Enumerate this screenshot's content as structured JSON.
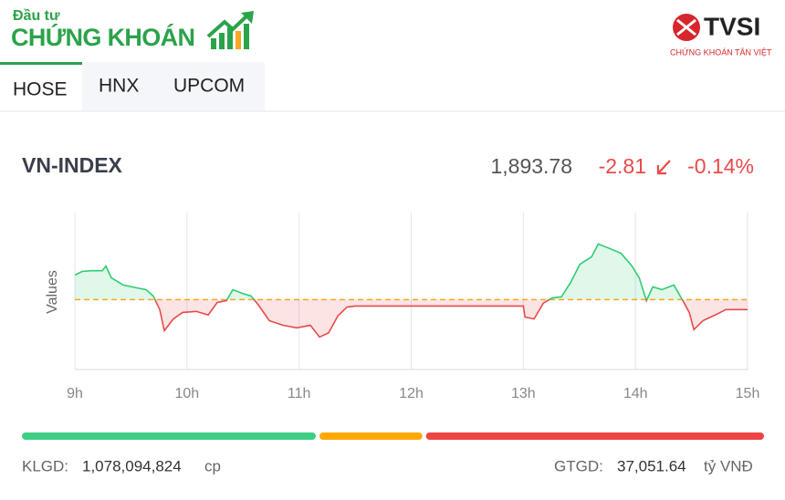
{
  "header": {
    "logo_small": "Đầu tư",
    "logo_big": "CHỨNG KHOÁN",
    "brand": "TVSI",
    "brand_sub": "CHỨNG KHOÁN TÂN VIỆT"
  },
  "tabs": [
    "HOSE",
    "HNX",
    "UPCOM"
  ],
  "index": {
    "name": "VN-INDEX",
    "value": "1,893.78",
    "change": "-2.81",
    "change_pct": "-0.14%"
  },
  "chart_data": {
    "type": "line",
    "ylabel": "Values",
    "x": [
      9.0,
      9.065,
      9.147,
      9.244,
      9.277,
      9.326,
      9.432,
      9.554,
      9.635,
      9.7,
      9.757,
      9.798,
      9.879,
      9.961,
      10.083,
      10.189,
      10.27,
      10.352,
      10.409,
      10.49,
      10.572,
      10.637,
      10.735,
      10.857,
      10.979,
      11.101,
      11.182,
      11.264,
      11.345,
      11.427,
      11.5,
      13.0,
      13.015,
      13.096,
      13.178,
      13.259,
      13.34,
      13.422,
      13.504,
      13.609,
      13.668,
      13.749,
      13.871,
      13.969,
      14.034,
      14.098,
      14.155,
      14.236,
      14.342,
      14.423,
      14.48,
      14.521,
      14.603,
      14.725,
      14.806,
      15.0
    ],
    "values": [
      1903.5,
      1904.5,
      1904.7,
      1904.7,
      1906.0,
      1902.7,
      1900.7,
      1899.9,
      1899.4,
      1897.6,
      1893.8,
      1887.9,
      1891.2,
      1893.0,
      1893.3,
      1892.3,
      1895.8,
      1896.3,
      1899.4,
      1898.4,
      1897.6,
      1895.1,
      1890.7,
      1889.4,
      1888.7,
      1889.4,
      1886.1,
      1887.3,
      1892.0,
      1894.5,
      1894.8,
      1894.8,
      1891.7,
      1891.2,
      1895.6,
      1897.1,
      1897.4,
      1901.4,
      1906.5,
      1908.6,
      1912.2,
      1911.2,
      1909.6,
      1906.0,
      1902.7,
      1896.3,
      1900.2,
      1899.4,
      1900.7,
      1896.3,
      1893.0,
      1888.2,
      1890.7,
      1892.5,
      1893.8,
      1893.8
    ],
    "reference": 1896.59,
    "up_color": "#2ecc71",
    "down_color": "#e84a4a",
    "reference_color": "#f5a623",
    "xlim": [
      9,
      15
    ],
    "ylim": [
      1877,
      1921
    ],
    "xticks": [
      {
        "value": 9,
        "label": "9h"
      },
      {
        "value": 10,
        "label": "10h"
      },
      {
        "value": 11,
        "label": "11h"
      },
      {
        "value": 12,
        "label": "12h"
      },
      {
        "value": 13,
        "label": "13h"
      },
      {
        "value": 14,
        "label": "14h"
      },
      {
        "value": 15,
        "label": "15h"
      }
    ],
    "grid": true
  },
  "breadth": {
    "values": [
      40,
      14,
      46
    ],
    "colors": [
      "#3ecf86",
      "#ffa800",
      "#ef4444"
    ]
  },
  "footer": {
    "volume_label": "KLGD:",
    "volume": "1,078,094,824",
    "volume_unit": "cp",
    "value_label": "GTGD:",
    "value": "37,051.64",
    "value_unit": "tỷ VNĐ"
  }
}
